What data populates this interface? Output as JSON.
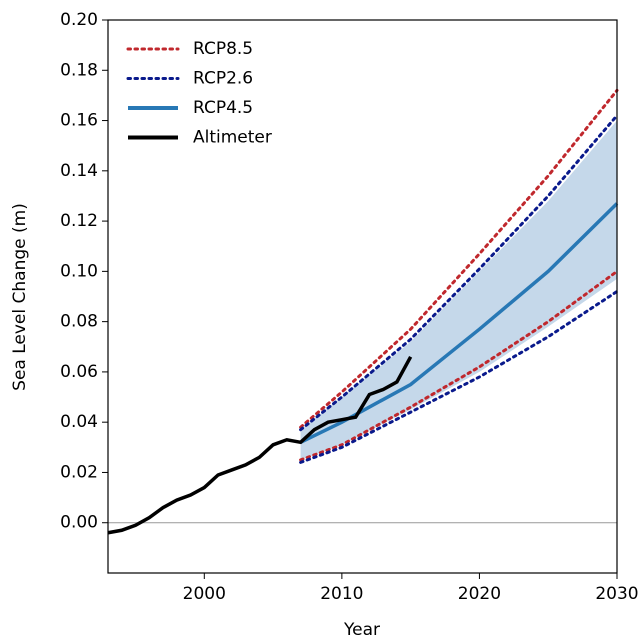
{
  "chart_data": {
    "type": "line",
    "xlabel": "Year",
    "ylabel": "Sea Level Change (m)",
    "xlim": [
      1993,
      2030
    ],
    "ylim": [
      -0.02,
      0.2
    ],
    "xticks": [
      2000,
      2010,
      2020,
      2030
    ],
    "yticks": [
      {
        "value": 0,
        "label": "0.00"
      },
      {
        "value": 0.02,
        "label": "0.02"
      },
      {
        "value": 0.04,
        "label": "0.04"
      },
      {
        "value": 0.06,
        "label": "0.06"
      },
      {
        "value": 0.08,
        "label": "0.08"
      },
      {
        "value": 0.1,
        "label": "0.10"
      },
      {
        "value": 0.12,
        "label": "0.12"
      },
      {
        "value": 0.14,
        "label": "0.14"
      },
      {
        "value": 0.16,
        "label": "0.16"
      },
      {
        "value": 0.18,
        "label": "0.18"
      },
      {
        "value": 0.2,
        "label": "0.20"
      }
    ],
    "hline": 0,
    "legend": "upper left",
    "series": [
      {
        "name": "RCP8.5",
        "color": "#c0282d",
        "style": "dotted",
        "x": [
          2007,
          2010,
          2015,
          2020,
          2025,
          2030
        ],
        "values": [
          0.038,
          0.052,
          0.077,
          0.107,
          0.138,
          0.172
        ],
        "lower_values": [
          0.025,
          0.031,
          0.046,
          0.062,
          0.08,
          0.1
        ]
      },
      {
        "name": "RCP2.6",
        "color": "#0a1a8c",
        "style": "dotted",
        "x": [
          2007,
          2010,
          2015,
          2020,
          2025,
          2030
        ],
        "values": [
          0.037,
          0.05,
          0.073,
          0.101,
          0.13,
          0.162
        ],
        "lower_values": [
          0.024,
          0.03,
          0.044,
          0.058,
          0.074,
          0.092
        ]
      },
      {
        "name": "RCP4.5",
        "color": "#2878b5",
        "style": "solid",
        "band_color": "#c5d8ea",
        "x": [
          2007,
          2010,
          2015,
          2020,
          2025,
          2030
        ],
        "values": [
          0.032,
          0.04,
          0.055,
          0.077,
          0.1,
          0.127
        ],
        "band_low": [
          0.025,
          0.031,
          0.045,
          0.06,
          0.078,
          0.097
        ],
        "band_high": [
          0.037,
          0.05,
          0.072,
          0.1,
          0.128,
          0.16
        ]
      },
      {
        "name": "Altimeter",
        "color": "#000000",
        "style": "solid",
        "x": [
          1993,
          1994,
          1995,
          1996,
          1997,
          1998,
          1999,
          2000,
          2001,
          2002,
          2003,
          2004,
          2005,
          2006,
          2007,
          2008,
          2009,
          2010,
          2011,
          2012,
          2013,
          2014,
          2015
        ],
        "values": [
          -0.004,
          -0.003,
          -0.001,
          0.002,
          0.006,
          0.009,
          0.011,
          0.014,
          0.019,
          0.021,
          0.023,
          0.026,
          0.031,
          0.033,
          0.032,
          0.037,
          0.04,
          0.041,
          0.042,
          0.051,
          0.053,
          0.056,
          0.066
        ]
      }
    ]
  }
}
